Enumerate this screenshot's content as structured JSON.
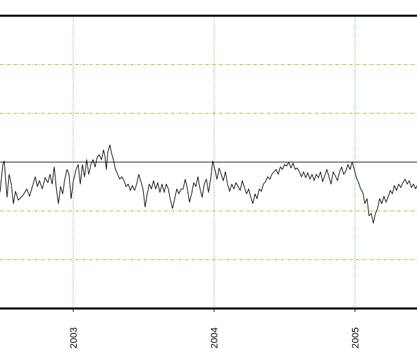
{
  "chart_data": {
    "type": "line",
    "title": "",
    "xlabel": "",
    "ylabel": "",
    "x_ticks": [
      {
        "label": "2003",
        "value": 2003.0
      },
      {
        "label": "2004",
        "value": 2004.0
      },
      {
        "label": "2005",
        "value": 2005.0
      }
    ],
    "xlim": [
      2002.48,
      2005.44
    ],
    "ylim": [
      -3,
      3
    ],
    "reference_line": 0,
    "horizontal_gridlines": [
      2,
      1,
      -1,
      -2
    ],
    "grid": true,
    "legend": "none",
    "colors": {
      "line": "#000000",
      "reference_line": "#000000",
      "h_grid": "#d89a1c",
      "v_grid": "#2f9e2f",
      "frame": "#000000"
    },
    "series": [
      {
        "values": [
          [
            2002.48,
            -0.62
          ],
          [
            2002.5,
            -0.05
          ],
          [
            2002.51,
            0.02
          ],
          [
            2002.52,
            -0.35
          ],
          [
            2002.53,
            -0.72
          ],
          [
            2002.545,
            -0.25
          ],
          [
            2002.56,
            -0.45
          ],
          [
            2002.575,
            -0.85
          ],
          [
            2002.59,
            -0.6
          ],
          [
            2002.61,
            -0.78
          ],
          [
            2002.63,
            -0.72
          ],
          [
            2002.65,
            -0.65
          ],
          [
            2002.67,
            -0.55
          ],
          [
            2002.69,
            -0.7
          ],
          [
            2002.71,
            -0.5
          ],
          [
            2002.73,
            -0.3
          ],
          [
            2002.745,
            -0.5
          ],
          [
            2002.76,
            -0.38
          ],
          [
            2002.78,
            -0.55
          ],
          [
            2002.8,
            -0.32
          ],
          [
            2002.82,
            -0.42
          ],
          [
            2002.835,
            -0.25
          ],
          [
            2002.85,
            -0.45
          ],
          [
            2002.865,
            -0.1
          ],
          [
            2002.88,
            -0.55
          ],
          [
            2002.895,
            -0.85
          ],
          [
            2002.91,
            -0.5
          ],
          [
            2002.925,
            -0.65
          ],
          [
            2002.94,
            -0.35
          ],
          [
            2002.955,
            -0.15
          ],
          [
            2002.97,
            -0.25
          ],
          [
            2002.985,
            -0.75
          ],
          [
            2003.0,
            -0.4
          ],
          [
            2003.02,
            -0.15
          ],
          [
            2003.035,
            -0.05
          ],
          [
            2003.05,
            -0.45
          ],
          [
            2003.065,
            -0.05
          ],
          [
            2003.08,
            -0.3
          ],
          [
            2003.095,
            0.05
          ],
          [
            2003.11,
            -0.25
          ],
          [
            2003.125,
            -0.05
          ],
          [
            2003.14,
            0.05
          ],
          [
            2003.155,
            -0.1
          ],
          [
            2003.17,
            0.1
          ],
          [
            2003.185,
            0.15
          ],
          [
            2003.2,
            0.05
          ],
          [
            2003.215,
            0.25
          ],
          [
            2003.225,
            0.12
          ],
          [
            2003.235,
            -0.15
          ],
          [
            2003.245,
            0.2
          ],
          [
            2003.26,
            0.35
          ],
          [
            2003.272,
            0.18
          ],
          [
            2003.285,
            0.05
          ],
          [
            2003.3,
            -0.15
          ],
          [
            2003.315,
            -0.25
          ],
          [
            2003.33,
            -0.35
          ],
          [
            2003.345,
            -0.3
          ],
          [
            2003.36,
            -0.38
          ],
          [
            2003.375,
            -0.5
          ],
          [
            2003.39,
            -0.45
          ],
          [
            2003.405,
            -0.58
          ],
          [
            2003.42,
            -0.48
          ],
          [
            2003.435,
            -0.58
          ],
          [
            2003.45,
            -0.45
          ],
          [
            2003.465,
            -0.25
          ],
          [
            2003.48,
            -0.4
          ],
          [
            2003.495,
            -0.55
          ],
          [
            2003.51,
            -0.92
          ],
          [
            2003.525,
            -0.65
          ],
          [
            2003.54,
            -0.45
          ],
          [
            2003.555,
            -0.55
          ],
          [
            2003.57,
            -0.38
          ],
          [
            2003.585,
            -0.55
          ],
          [
            2003.6,
            -0.42
          ],
          [
            2003.615,
            -0.62
          ],
          [
            2003.63,
            -0.45
          ],
          [
            2003.645,
            -0.62
          ],
          [
            2003.66,
            -0.45
          ],
          [
            2003.675,
            -0.55
          ],
          [
            2003.69,
            -0.78
          ],
          [
            2003.705,
            -0.95
          ],
          [
            2003.72,
            -0.75
          ],
          [
            2003.735,
            -0.55
          ],
          [
            2003.75,
            -0.65
          ],
          [
            2003.765,
            -0.55
          ],
          [
            2003.78,
            -0.55
          ],
          [
            2003.795,
            -0.35
          ],
          [
            2003.81,
            -0.55
          ],
          [
            2003.825,
            -0.82
          ],
          [
            2003.84,
            -0.65
          ],
          [
            2003.855,
            -0.42
          ],
          [
            2003.87,
            -0.5
          ],
          [
            2003.885,
            -0.3
          ],
          [
            2003.9,
            -0.55
          ],
          [
            2003.915,
            -0.72
          ],
          [
            2003.93,
            -0.45
          ],
          [
            2003.945,
            -0.35
          ],
          [
            2003.96,
            -0.62
          ],
          [
            2003.975,
            -0.35
          ],
          [
            2003.99,
            0.02
          ],
          [
            2004.005,
            -0.15
          ],
          [
            2004.02,
            -0.35
          ],
          [
            2004.035,
            -0.12
          ],
          [
            2004.05,
            -0.25
          ],
          [
            2004.065,
            -0.38
          ],
          [
            2004.08,
            -0.2
          ],
          [
            2004.095,
            -0.45
          ],
          [
            2004.11,
            -0.6
          ],
          [
            2004.125,
            -0.45
          ],
          [
            2004.14,
            -0.55
          ],
          [
            2004.155,
            -0.42
          ],
          [
            2004.17,
            -0.5
          ],
          [
            2004.185,
            -0.58
          ],
          [
            2004.2,
            -0.38
          ],
          [
            2004.215,
            -0.52
          ],
          [
            2004.23,
            -0.65
          ],
          [
            2004.245,
            -0.55
          ],
          [
            2004.26,
            -0.72
          ],
          [
            2004.275,
            -0.85
          ],
          [
            2004.29,
            -0.65
          ],
          [
            2004.305,
            -0.75
          ],
          [
            2004.32,
            -0.55
          ],
          [
            2004.335,
            -0.6
          ],
          [
            2004.35,
            -0.45
          ],
          [
            2004.365,
            -0.4
          ],
          [
            2004.38,
            -0.3
          ],
          [
            2004.395,
            -0.35
          ],
          [
            2004.41,
            -0.25
          ],
          [
            2004.425,
            -0.2
          ],
          [
            2004.44,
            -0.15
          ],
          [
            2004.455,
            -0.25
          ],
          [
            2004.47,
            -0.1
          ],
          [
            2004.485,
            -0.15
          ],
          [
            2004.5,
            -0.05
          ],
          [
            2004.515,
            -0.08
          ],
          [
            2004.53,
            0.0
          ],
          [
            2004.545,
            -0.12
          ],
          [
            2004.56,
            -0.02
          ],
          [
            2004.575,
            -0.15
          ],
          [
            2004.59,
            -0.12
          ],
          [
            2004.605,
            -0.2
          ],
          [
            2004.62,
            -0.3
          ],
          [
            2004.635,
            -0.2
          ],
          [
            2004.65,
            -0.32
          ],
          [
            2004.665,
            -0.22
          ],
          [
            2004.68,
            -0.35
          ],
          [
            2004.695,
            -0.25
          ],
          [
            2004.71,
            -0.38
          ],
          [
            2004.725,
            -0.25
          ],
          [
            2004.74,
            -0.32
          ],
          [
            2004.755,
            -0.2
          ],
          [
            2004.77,
            -0.4
          ],
          [
            2004.785,
            -0.28
          ],
          [
            2004.8,
            -0.15
          ],
          [
            2004.815,
            -0.3
          ],
          [
            2004.83,
            -0.45
          ],
          [
            2004.845,
            -0.2
          ],
          [
            2004.86,
            -0.28
          ],
          [
            2004.875,
            -0.38
          ],
          [
            2004.89,
            -0.2
          ],
          [
            2004.905,
            -0.1
          ],
          [
            2004.92,
            -0.25
          ],
          [
            2004.935,
            -0.18
          ],
          [
            2004.95,
            -0.05
          ],
          [
            2004.965,
            -0.15
          ],
          [
            2004.98,
            0.0
          ],
          [
            2004.995,
            -0.15
          ],
          [
            2005.01,
            -0.32
          ],
          [
            2005.025,
            -0.42
          ],
          [
            2005.04,
            -0.55
          ],
          [
            2005.055,
            -0.62
          ],
          [
            2005.07,
            -0.85
          ],
          [
            2005.085,
            -0.75
          ],
          [
            2005.1,
            -1.1
          ],
          [
            2005.115,
            -1.05
          ],
          [
            2005.13,
            -1.25
          ],
          [
            2005.145,
            -1.05
          ],
          [
            2005.16,
            -0.95
          ],
          [
            2005.175,
            -0.75
          ],
          [
            2005.19,
            -0.85
          ],
          [
            2005.205,
            -0.7
          ],
          [
            2005.22,
            -0.82
          ],
          [
            2005.235,
            -0.72
          ],
          [
            2005.25,
            -0.58
          ],
          [
            2005.265,
            -0.65
          ],
          [
            2005.28,
            -0.48
          ],
          [
            2005.295,
            -0.58
          ],
          [
            2005.31,
            -0.45
          ],
          [
            2005.325,
            -0.52
          ],
          [
            2005.34,
            -0.42
          ],
          [
            2005.355,
            -0.35
          ],
          [
            2005.37,
            -0.45
          ],
          [
            2005.385,
            -0.38
          ],
          [
            2005.4,
            -0.52
          ],
          [
            2005.415,
            -0.45
          ],
          [
            2005.43,
            -0.55
          ],
          [
            2005.44,
            -0.48
          ]
        ]
      }
    ]
  }
}
